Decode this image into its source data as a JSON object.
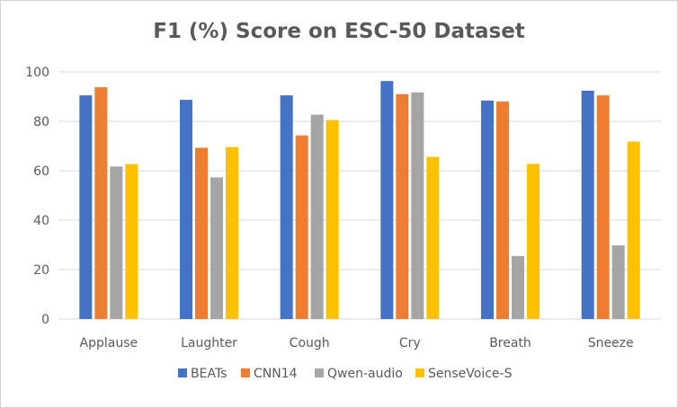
{
  "chart_data": {
    "type": "bar",
    "title": "F1 (%) Score on ESC-50 Dataset",
    "xlabel": "",
    "ylabel": "",
    "ylim": [
      0,
      100
    ],
    "yticks": [
      0,
      20,
      40,
      60,
      80,
      100
    ],
    "grid": true,
    "legend_position": "bottom",
    "categories": [
      "Applause",
      "Laughter",
      "Cough",
      "Cry",
      "Breath",
      "Sneeze"
    ],
    "series": [
      {
        "name": "BEATs",
        "color": "#4472C4",
        "values": [
          90.5,
          88.7,
          90.5,
          96.3,
          88.4,
          92.4
        ]
      },
      {
        "name": "CNN14",
        "color": "#ED7D31",
        "values": [
          93.8,
          69.3,
          74.3,
          91.0,
          88.0,
          90.5
        ]
      },
      {
        "name": "Qwen-audio",
        "color": "#A5A5A5",
        "values": [
          61.7,
          57.3,
          82.7,
          91.7,
          25.5,
          29.8
        ]
      },
      {
        "name": "SenseVoice-S",
        "color": "#FFC000",
        "values": [
          62.7,
          69.6,
          80.5,
          65.6,
          62.8,
          71.8
        ]
      }
    ]
  }
}
